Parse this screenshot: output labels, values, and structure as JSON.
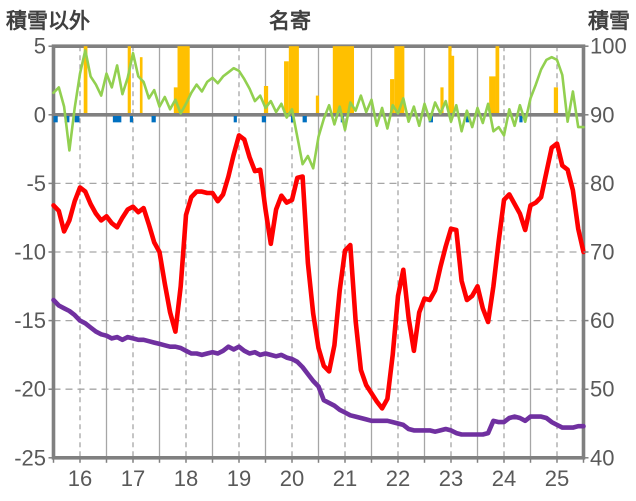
{
  "header": {
    "left_axis_title": "積雪以外",
    "chart_title": "名寄",
    "right_axis_title": "積雪"
  },
  "chart_data": {
    "type": "mixed",
    "title": "名寄",
    "grid": "both-solid-and-dashed",
    "legend": "none",
    "x_axis": {
      "labels": [
        "16",
        "17",
        "18",
        "19",
        "20",
        "21",
        "22",
        "23",
        "24",
        "25"
      ],
      "range": [
        16,
        26
      ]
    },
    "left_axis": {
      "title": "積雪以外",
      "range": [
        -25,
        5
      ],
      "ticks": [
        5,
        0,
        -5,
        -10,
        -15,
        -20,
        -25
      ]
    },
    "right_axis": {
      "title": "積雪",
      "range": [
        40,
        100
      ],
      "ticks": [
        100,
        90,
        80,
        70,
        60,
        50,
        40
      ]
    },
    "colors": {
      "green": "#92D050",
      "red": "#FF0000",
      "purple": "#7030A0",
      "orange": "#FFC000",
      "blue": "#0070C0",
      "frame": "#808080",
      "grid": "#A6A6A6",
      "tick_text": "#595959",
      "title_text": "#404040"
    },
    "series": [
      {
        "name": "green-line-right-axis",
        "type": "line",
        "axis": "right",
        "color": "#92D050",
        "width": 2.6,
        "x_start": 16.0,
        "x_step": 0.1,
        "values": [
          93.2,
          94.0,
          91.2,
          84.8,
          91.0,
          96.0,
          99.4,
          95.6,
          94.4,
          92.8,
          96.0,
          94.0,
          97.2,
          93.0,
          95.4,
          99.0,
          95.6,
          94.8,
          92.4,
          93.6,
          91.2,
          92.6,
          90.8,
          92.2,
          90.2,
          91.6,
          93.2,
          94.4,
          93.4,
          94.8,
          95.4,
          94.6,
          95.6,
          96.2,
          96.8,
          96.4,
          95.2,
          93.8,
          92.0,
          92.8,
          91.0,
          92.0,
          90.4,
          91.6,
          89.6,
          90.8,
          86.8,
          82.8,
          84.0,
          82.2,
          86.8,
          89.4,
          91.4,
          88.6,
          91.2,
          87.8,
          91.8,
          90.6,
          92.8,
          90.4,
          92.2,
          88.4,
          91.0,
          88.0,
          91.4,
          90.2,
          92.4,
          89.0,
          91.2,
          88.4,
          91.6,
          89.2,
          91.8,
          90.2,
          92.0,
          89.0,
          91.4,
          87.6,
          90.6,
          88.2,
          91.0,
          88.8,
          91.6,
          87.6,
          88.2,
          87.0,
          90.8,
          88.4,
          91.4,
          89.0,
          92.4,
          94.4,
          96.6,
          98.0,
          98.4,
          98.0,
          95.8,
          89.0,
          93.4,
          88.2,
          88.2
        ]
      },
      {
        "name": "red-line-left-axis",
        "type": "line",
        "axis": "left",
        "color": "#FF0000",
        "width": 4.6,
        "x_start": 16.0,
        "x_step": 0.1,
        "values": [
          -6.6,
          -7.0,
          -8.5,
          -7.7,
          -6.3,
          -5.3,
          -5.6,
          -6.5,
          -7.2,
          -7.7,
          -7.4,
          -7.9,
          -8.2,
          -7.5,
          -6.9,
          -6.7,
          -7.1,
          -6.8,
          -8.0,
          -9.3,
          -10.0,
          -12.3,
          -14.4,
          -15.8,
          -12.5,
          -7.3,
          -6.0,
          -5.6,
          -5.6,
          -5.7,
          -5.7,
          -6.3,
          -5.8,
          -4.5,
          -2.9,
          -1.5,
          -1.8,
          -3.1,
          -4.1,
          -4.0,
          -6.9,
          -9.4,
          -6.9,
          -5.9,
          -6.4,
          -6.2,
          -4.6,
          -4.5,
          -10.8,
          -14.5,
          -17.0,
          -18.3,
          -18.7,
          -16.8,
          -12.8,
          -9.9,
          -9.5,
          -15.0,
          -18.6,
          -19.7,
          -20.3,
          -20.9,
          -21.4,
          -20.7,
          -17.5,
          -13.2,
          -11.3,
          -14.8,
          -17.2,
          -14.4,
          -13.4,
          -13.5,
          -12.8,
          -11.1,
          -9.6,
          -8.3,
          -8.4,
          -12.1,
          -13.5,
          -13.2,
          -12.5,
          -14.1,
          -15.1,
          -12.5,
          -9.2,
          -6.2,
          -5.8,
          -6.5,
          -7.2,
          -8.4,
          -6.6,
          -6.4,
          -6.0,
          -4.2,
          -2.4,
          -2.1,
          -3.7,
          -4.0,
          -5.5,
          -8.3,
          -10.0
        ]
      },
      {
        "name": "purple-line-left-axis",
        "type": "line",
        "axis": "left",
        "color": "#7030A0",
        "width": 4.6,
        "x_start": 16.0,
        "x_step": 0.1,
        "values": [
          -13.5,
          -13.9,
          -14.1,
          -14.3,
          -14.6,
          -15.0,
          -15.2,
          -15.5,
          -15.8,
          -16.0,
          -16.1,
          -16.3,
          -16.2,
          -16.4,
          -16.2,
          -16.3,
          -16.4,
          -16.4,
          -16.5,
          -16.6,
          -16.7,
          -16.8,
          -16.9,
          -16.9,
          -17.0,
          -17.2,
          -17.4,
          -17.4,
          -17.5,
          -17.4,
          -17.3,
          -17.4,
          -17.2,
          -16.9,
          -17.1,
          -16.9,
          -17.2,
          -17.4,
          -17.3,
          -17.5,
          -17.4,
          -17.5,
          -17.6,
          -17.5,
          -17.7,
          -17.8,
          -18.0,
          -18.4,
          -18.9,
          -19.4,
          -19.8,
          -20.8,
          -21.0,
          -21.2,
          -21.5,
          -21.7,
          -21.9,
          -22.0,
          -22.1,
          -22.2,
          -22.3,
          -22.3,
          -22.3,
          -22.3,
          -22.4,
          -22.5,
          -22.6,
          -22.9,
          -23.0,
          -23.0,
          -23.0,
          -23.0,
          -23.1,
          -23.0,
          -22.9,
          -23.0,
          -23.2,
          -23.3,
          -23.3,
          -23.3,
          -23.3,
          -23.3,
          -23.2,
          -22.3,
          -22.4,
          -22.4,
          -22.1,
          -22.0,
          -22.1,
          -22.3,
          -22.0,
          -22.0,
          -22.0,
          -22.1,
          -22.4,
          -22.6,
          -22.8,
          -22.8,
          -22.8,
          -22.7,
          -22.7
        ]
      },
      {
        "name": "orange-bars-left-axis",
        "type": "bar",
        "axis": "left",
        "color": "#FFC000",
        "bars": [
          [
            16.57,
            16.64,
            5
          ],
          [
            17.4,
            17.46,
            5
          ],
          [
            17.63,
            17.68,
            4.2
          ],
          [
            18.27,
            18.34,
            2.0
          ],
          [
            18.34,
            18.57,
            5
          ],
          [
            19.97,
            20.05,
            2.1
          ],
          [
            20.35,
            20.44,
            3.9
          ],
          [
            20.44,
            20.63,
            5
          ],
          [
            20.95,
            21.01,
            1.4
          ],
          [
            21.27,
            21.67,
            5
          ],
          [
            22.35,
            22.43,
            2.6
          ],
          [
            22.43,
            22.62,
            5
          ],
          [
            23.3,
            23.36,
            2.0
          ],
          [
            23.45,
            23.51,
            5
          ],
          [
            23.51,
            23.56,
            4.3
          ],
          [
            24.22,
            24.34,
            2.8
          ],
          [
            24.34,
            24.41,
            5
          ],
          [
            25.44,
            25.52,
            2.0
          ]
        ]
      },
      {
        "name": "blue-bars-left-axis",
        "type": "bar",
        "axis": "left",
        "color": "#0070C0",
        "bars": [
          [
            16.0,
            16.08,
            -0.55
          ],
          [
            16.21,
            16.3,
            -0.55
          ],
          [
            16.4,
            16.49,
            -0.55
          ],
          [
            17.12,
            17.28,
            -0.55
          ],
          [
            17.44,
            17.5,
            -0.55
          ],
          [
            17.85,
            17.93,
            -0.55
          ],
          [
            19.4,
            19.46,
            -0.55
          ],
          [
            19.93,
            20.01,
            -0.55
          ],
          [
            20.48,
            20.54,
            -0.55
          ],
          [
            20.7,
            20.78,
            -0.55
          ],
          [
            21.42,
            21.48,
            -0.55
          ],
          [
            23.08,
            23.16,
            -0.55
          ],
          [
            23.78,
            23.84,
            -0.55
          ],
          [
            24.79,
            24.85,
            -0.55
          ]
        ]
      }
    ]
  }
}
